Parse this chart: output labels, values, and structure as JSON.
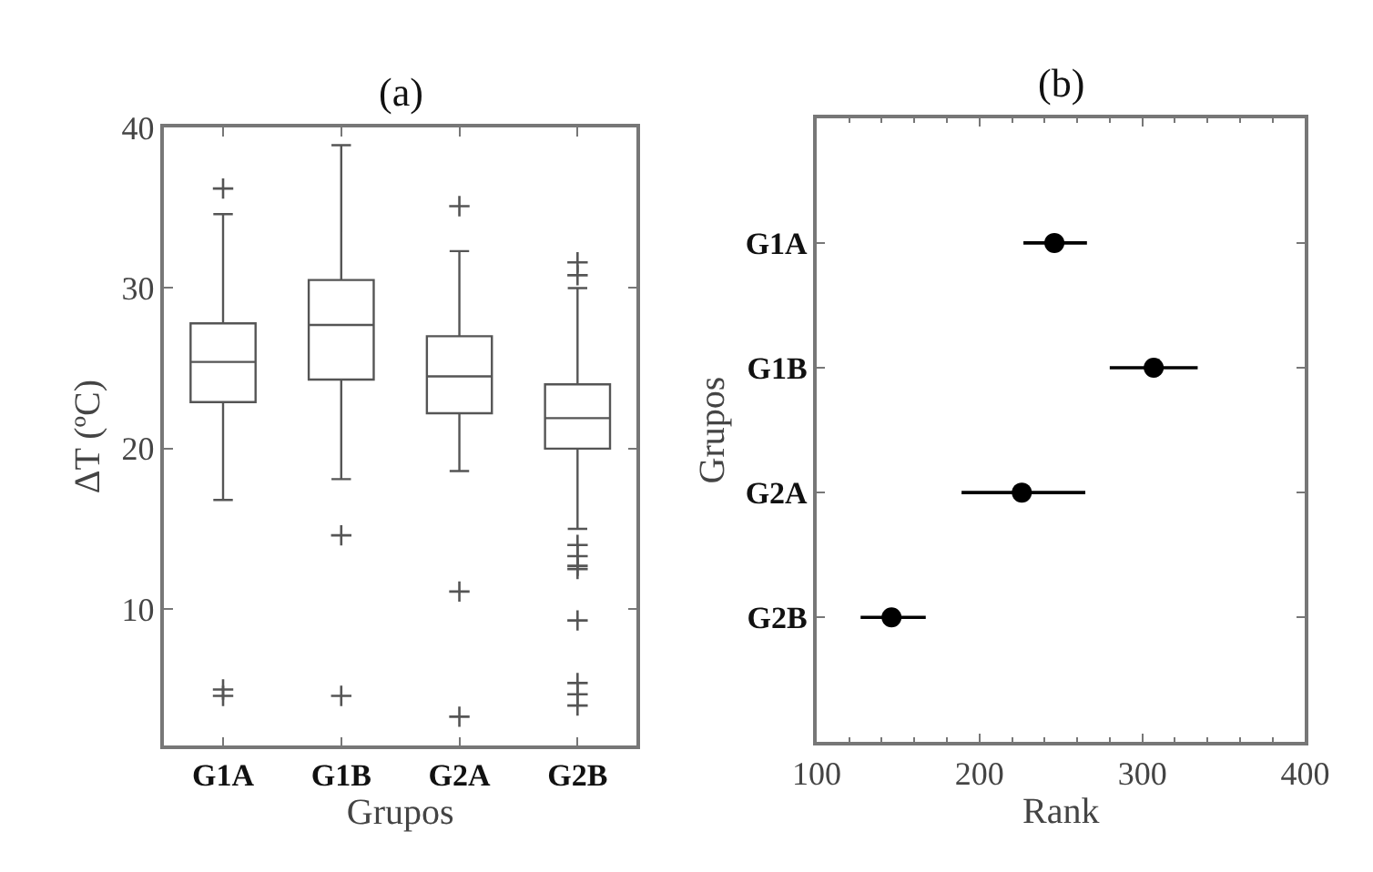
{
  "chart_data": [
    {
      "type": "box",
      "title": "(a)",
      "xlabel": "Grupos",
      "ylabel": "ΔT (ºC)",
      "categories": [
        "G1A",
        "G1B",
        "G2A",
        "G2B"
      ],
      "ylim": [
        1.5,
        40
      ],
      "yticks": [
        10,
        20,
        30,
        40
      ],
      "color": "#555555",
      "boxes": [
        {
          "low": 16.8,
          "q1": 22.9,
          "median": 25.4,
          "q3": 27.8,
          "high": 34.6,
          "outliers": [
            36.2,
            5.0,
            4.6
          ]
        },
        {
          "low": 18.1,
          "q1": 24.3,
          "median": 27.7,
          "q3": 30.5,
          "high": 38.9,
          "outliers": [
            14.6,
            4.6
          ]
        },
        {
          "low": 18.6,
          "q1": 22.2,
          "median": 24.5,
          "q3": 27.0,
          "high": 32.3,
          "outliers": [
            35.1,
            11.1,
            3.3
          ]
        },
        {
          "low": 15.0,
          "q1": 20.0,
          "median": 21.9,
          "q3": 24.0,
          "high": 30.0,
          "outliers": [
            30.8,
            31.6,
            14.0,
            13.3,
            12.7,
            12.5,
            9.3,
            5.4,
            4.7,
            4.0
          ]
        }
      ]
    },
    {
      "type": "scatter",
      "orientation": "horizontal",
      "title": "(b)",
      "xlabel": "Rank",
      "ylabel": "Grupos",
      "categories": [
        "G1A",
        "G1B",
        "G2A",
        "G2B"
      ],
      "xlim": [
        100,
        400
      ],
      "xticks": [
        100,
        200,
        300,
        400
      ],
      "marker": "circle",
      "color": "#000000",
      "values": [
        246,
        307,
        226,
        146
      ],
      "errors": [
        [
          227,
          266
        ],
        [
          280,
          334
        ],
        [
          189,
          265
        ],
        [
          127,
          167
        ]
      ]
    }
  ]
}
